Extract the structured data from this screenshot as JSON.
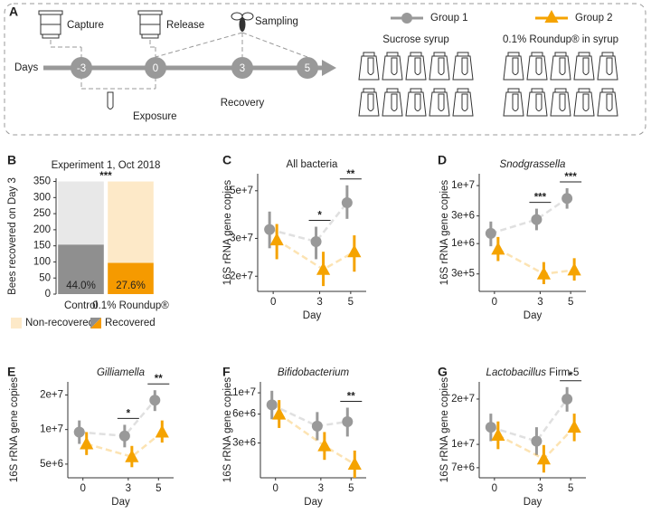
{
  "diagram": {
    "panel": "A",
    "days_label": "Days",
    "days": [
      "-3",
      "0",
      "3",
      "5"
    ],
    "events": {
      "capture": "Capture",
      "release": "Release",
      "sampling": "Sampling",
      "exposure": "Exposure",
      "recovery": "Recovery"
    },
    "groups": [
      {
        "name": "Group 1",
        "description": "Sucrose syrup",
        "color": "#999999",
        "shape": "circle"
      },
      {
        "name": "Group 2",
        "description": "0.1% Roundup® in syrup",
        "color": "#f5a300",
        "shape": "triangle"
      }
    ]
  },
  "chart_data": [
    {
      "type": "stacked_bar",
      "panel": "B",
      "title": "Experiment 1, Oct 2018",
      "ylabel": "Bees recovered on Day 3",
      "categories": [
        "Control",
        "0.1% Roundup®"
      ],
      "series": [
        {
          "name": "Recovered",
          "colors": [
            "#8f8f8f",
            "#f59a00"
          ],
          "values": [
            154,
            97
          ]
        },
        {
          "name": "Non-recovered",
          "colors": [
            "#e8e8e8",
            "#fde9c8"
          ],
          "values": [
            196,
            253
          ]
        }
      ],
      "bar_labels": [
        "44.0%",
        "27.6%"
      ],
      "significance": "***",
      "ylim": [
        0,
        360
      ],
      "yticks": [
        0,
        50,
        100,
        150,
        200,
        250,
        300,
        350
      ]
    },
    {
      "type": "pointrange",
      "panel": "C",
      "title": "All bacteria",
      "title_italic": false,
      "ylabel": "16S rRNA gene copies",
      "xlabel": "Day",
      "log_y": true,
      "x": [
        0,
        3,
        5
      ],
      "xlim": [
        -1,
        6
      ],
      "xticks": [
        0,
        3,
        5
      ],
      "ylim": [
        17000000,
        60000000
      ],
      "yticks": [
        {
          "value": 20000000,
          "label": "2e+7"
        },
        {
          "value": 30000000,
          "label": "3e+7"
        },
        {
          "value": 50000000,
          "label": "5e+7"
        }
      ],
      "series": [
        {
          "name": "Group 1",
          "color": "#999999",
          "shape": "circle",
          "values": [
            33000000,
            29000000,
            44000000
          ],
          "lower": [
            27000000,
            24000000,
            37000000
          ],
          "upper": [
            40000000,
            34000000,
            53000000
          ]
        },
        {
          "name": "Group 2",
          "color": "#f5a300",
          "shape": "triangle",
          "values": [
            29500000,
            21500000,
            26000000
          ],
          "lower": [
            24000000,
            18000000,
            21000000
          ],
          "upper": [
            35000000,
            26000000,
            31000000
          ]
        }
      ],
      "significance": [
        {
          "x": 3,
          "label": "*"
        },
        {
          "x": 5,
          "label": "**"
        }
      ]
    },
    {
      "type": "pointrange",
      "panel": "D",
      "title": "Snodgrassella",
      "title_italic": true,
      "ylabel": "16S rRNA gene copies",
      "xlabel": "Day",
      "log_y": true,
      "x": [
        0,
        3,
        5
      ],
      "xlim": [
        -1,
        6
      ],
      "xticks": [
        0,
        3,
        5
      ],
      "ylim": [
        150000,
        16000000
      ],
      "yticks": [
        {
          "value": 300000,
          "label": "3e+5"
        },
        {
          "value": 1000000,
          "label": "1e+6"
        },
        {
          "value": 3000000,
          "label": "3e+6"
        },
        {
          "value": 10000000,
          "label": "1e+7"
        }
      ],
      "series": [
        {
          "name": "Group 1",
          "color": "#999999",
          "shape": "circle",
          "values": [
            1500000,
            2600000,
            6000000
          ],
          "lower": [
            900000,
            1700000,
            4000000
          ],
          "upper": [
            2400000,
            4000000,
            9000000
          ]
        },
        {
          "name": "Group 2",
          "color": "#f5a300",
          "shape": "triangle",
          "values": [
            800000,
            300000,
            350000
          ],
          "lower": [
            500000,
            200000,
            230000
          ],
          "upper": [
            1300000,
            480000,
            560000
          ]
        }
      ],
      "significance": [
        {
          "x": 3,
          "label": "***"
        },
        {
          "x": 5,
          "label": "***"
        }
      ]
    },
    {
      "type": "pointrange",
      "panel": "E",
      "title": "Gilliamella",
      "title_italic": true,
      "ylabel": "16S rRNA gene copies",
      "xlabel": "Day",
      "log_y": true,
      "x": [
        0,
        3,
        5
      ],
      "xlim": [
        -1,
        6
      ],
      "xticks": [
        0,
        3,
        5
      ],
      "ylim": [
        3800000,
        26000000
      ],
      "yticks": [
        {
          "value": 5000000,
          "label": "5e+6"
        },
        {
          "value": 10000000,
          "label": "1e+7"
        },
        {
          "value": 20000000,
          "label": "2e+7"
        }
      ],
      "series": [
        {
          "name": "Group 1",
          "color": "#999999",
          "shape": "circle",
          "values": [
            9500000,
            8800000,
            18000000
          ],
          "lower": [
            7500000,
            7000000,
            14500000
          ],
          "upper": [
            12000000,
            11000000,
            22000000
          ]
        },
        {
          "name": "Group 2",
          "color": "#f5a300",
          "shape": "triangle",
          "values": [
            7500000,
            5800000,
            9500000
          ],
          "lower": [
            6000000,
            4700000,
            7700000
          ],
          "upper": [
            9500000,
            7200000,
            12000000
          ]
        }
      ],
      "significance": [
        {
          "x": 3,
          "label": "*"
        },
        {
          "x": 5,
          "label": "**"
        }
      ]
    },
    {
      "type": "pointrange",
      "panel": "F",
      "title": "Bifidobacterium",
      "title_italic": true,
      "ylabel": "16S rRNA gene copies",
      "xlabel": "Day",
      "log_y": true,
      "x": [
        0,
        3,
        5
      ],
      "xlim": [
        -1,
        6
      ],
      "xticks": [
        0,
        3,
        5
      ],
      "ylim": [
        1300000,
        13000000
      ],
      "yticks": [
        {
          "value": 3000000,
          "label": "3e+6"
        },
        {
          "value": 6000000,
          "label": "6e+6"
        },
        {
          "value": 10000000,
          "label": "1e+7"
        }
      ],
      "series": [
        {
          "name": "Group 1",
          "color": "#999999",
          "shape": "circle",
          "values": [
            7500000,
            4500000,
            5000000
          ],
          "lower": [
            5300000,
            3200000,
            3500000
          ],
          "upper": [
            10500000,
            6300000,
            7000000
          ]
        },
        {
          "name": "Group 2",
          "color": "#f5a300",
          "shape": "triangle",
          "values": [
            6000000,
            2800000,
            1800000
          ],
          "lower": [
            4300000,
            2000000,
            1300000
          ],
          "upper": [
            8400000,
            3900000,
            2500000
          ]
        }
      ],
      "significance": [
        {
          "x": 5,
          "label": "**"
        }
      ]
    },
    {
      "type": "pointrange",
      "panel": "G",
      "title": "Lactobacillus",
      "title_suffix": "Firm-5",
      "title_italic": true,
      "ylabel": "16S rRNA gene copies",
      "xlabel": "Day",
      "log_y": true,
      "x": [
        0,
        3,
        5
      ],
      "xlim": [
        -1,
        6
      ],
      "xticks": [
        0,
        3,
        5
      ],
      "ylim": [
        6000000,
        26000000
      ],
      "yticks": [
        {
          "value": 7000000,
          "label": "7e+6"
        },
        {
          "value": 10000000,
          "label": "1e+7"
        },
        {
          "value": 20000000,
          "label": "2e+7"
        }
      ],
      "series": [
        {
          "name": "Group 1",
          "color": "#999999",
          "shape": "circle",
          "values": [
            13000000,
            10500000,
            20000000
          ],
          "lower": [
            10500000,
            8500000,
            16500000
          ],
          "upper": [
            16000000,
            13000000,
            24000000
          ]
        },
        {
          "name": "Group 2",
          "color": "#f5a300",
          "shape": "triangle",
          "values": [
            11500000,
            8000000,
            13000000
          ],
          "lower": [
            9300000,
            6500000,
            10500000
          ],
          "upper": [
            14200000,
            9900000,
            16000000
          ]
        }
      ],
      "significance": [
        {
          "x": 5,
          "label": "*"
        }
      ]
    }
  ]
}
